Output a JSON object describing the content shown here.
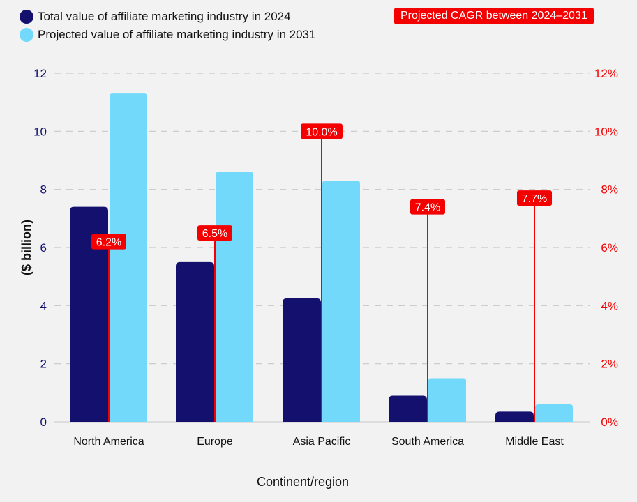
{
  "chart_data": {
    "type": "bar",
    "categories": [
      "North America",
      "Europe",
      "Asia Pacific",
      "South America",
      "Middle East"
    ],
    "series": [
      {
        "name": "Total value of affiliate marketing industry in 2024",
        "values": [
          7.4,
          5.5,
          4.25,
          0.9,
          0.35
        ],
        "color": "#14116e",
        "axis": "left"
      },
      {
        "name": "Projected value of affiliate marketing industry in 2031",
        "values": [
          11.3,
          8.6,
          8.3,
          1.5,
          0.6
        ],
        "color": "#73d9fb",
        "axis": "left"
      },
      {
        "name": "Projected CAGR between 2024–2031",
        "values": [
          6.2,
          6.5,
          10.0,
          7.4,
          7.7
        ],
        "labels": [
          "6.2%",
          "6.5%",
          "10.0%",
          "7.4%",
          "7.7%"
        ],
        "color": "#f50000",
        "axis": "right",
        "style": "lollipop"
      }
    ],
    "xlabel": "Continent/region",
    "ylabel": "($ billion)",
    "ylim": [
      0,
      12
    ],
    "yticks": [
      "0",
      "2",
      "4",
      "6",
      "8",
      "10",
      "12"
    ],
    "y2lim": [
      0,
      12
    ],
    "y2ticks": [
      "0%",
      "2%",
      "4%",
      "6%",
      "8%",
      "10%",
      "12%"
    ],
    "grid": true,
    "legend_position": "top"
  }
}
